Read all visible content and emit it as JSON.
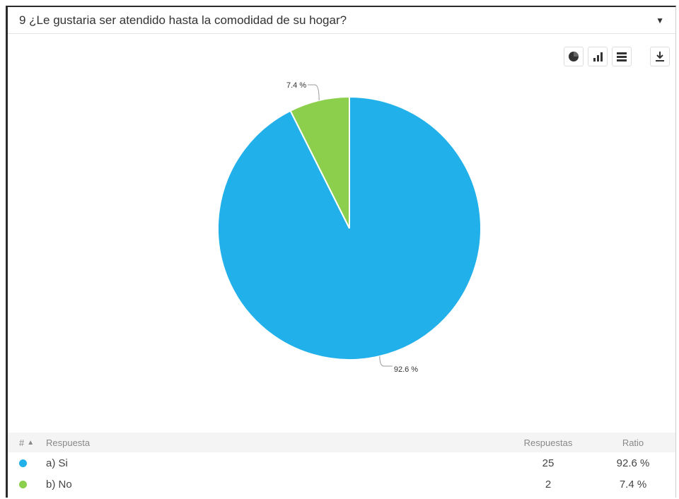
{
  "question": {
    "title": "9 ¿Le gustaria ser atendido hasta la comodidad de su hogar?"
  },
  "toolbar": {
    "icons": [
      "pie-chart-icon",
      "bar-chart-icon",
      "table-icon",
      "download-icon"
    ]
  },
  "chart_data": {
    "type": "pie",
    "categories": [
      "a) Si",
      "b) No"
    ],
    "values": [
      92.6,
      7.4
    ],
    "labels": [
      "92.6 %",
      "7.4 %"
    ],
    "colors": [
      "#22b0ea",
      "#8ccf4d"
    ],
    "title": "",
    "legend": "none"
  },
  "table": {
    "headers": {
      "hash": "#",
      "sort_indicator": "▲",
      "respuesta": "Respuesta",
      "respuestas": "Respuestas",
      "ratio": "Ratio"
    },
    "rows": [
      {
        "label": "a) Si",
        "count": "25",
        "ratio": "92.6 %",
        "color": "#22b0ea"
      },
      {
        "label": "b) No",
        "count": "2",
        "ratio": "7.4 %",
        "color": "#8ccf4d"
      }
    ]
  }
}
